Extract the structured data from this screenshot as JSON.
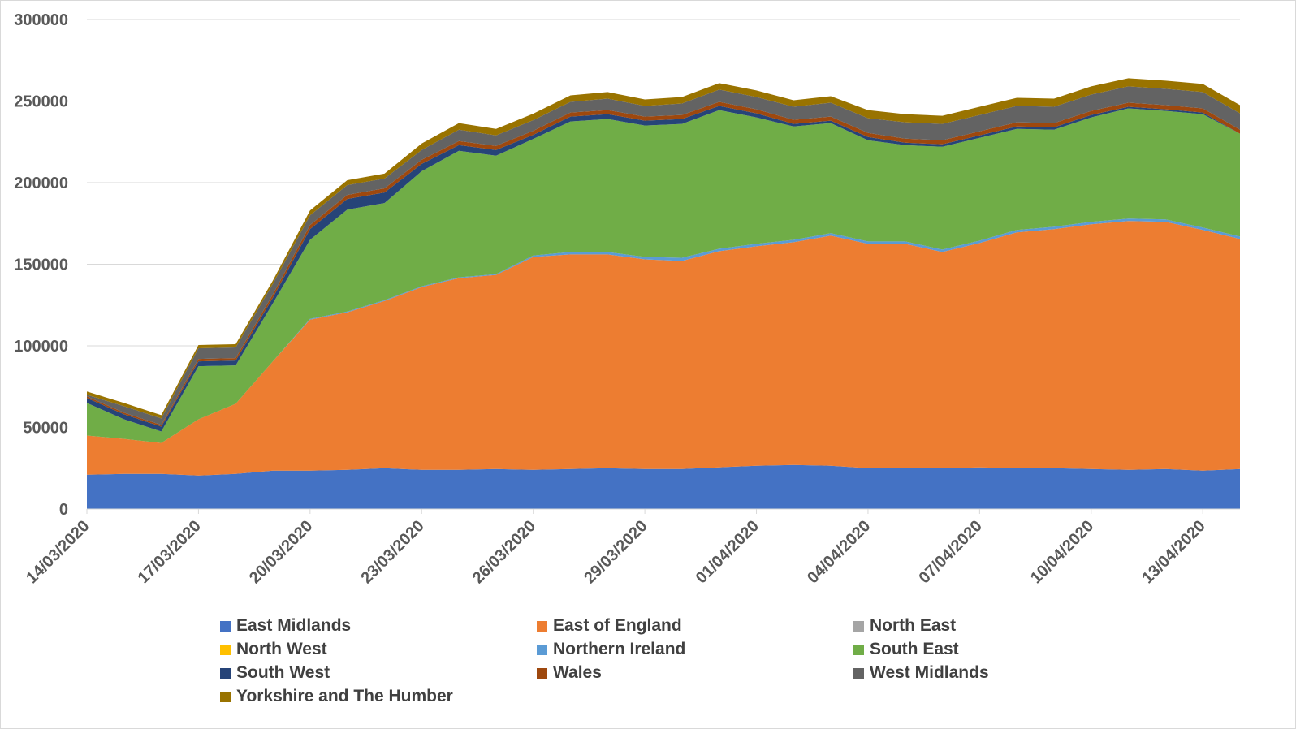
{
  "chart_data": {
    "type": "area",
    "stacked": true,
    "title": "",
    "xlabel": "",
    "ylabel": "",
    "ylim": [
      0,
      300000
    ],
    "y_ticks": [
      0,
      50000,
      100000,
      150000,
      200000,
      250000,
      300000
    ],
    "grid": true,
    "legend_position": "bottom",
    "x": [
      "14/03/2020",
      "15/03/2020",
      "16/03/2020",
      "17/03/2020",
      "18/03/2020",
      "19/03/2020",
      "20/03/2020",
      "21/03/2020",
      "22/03/2020",
      "23/03/2020",
      "24/03/2020",
      "25/03/2020",
      "26/03/2020",
      "27/03/2020",
      "28/03/2020",
      "29/03/2020",
      "30/03/2020",
      "31/03/2020",
      "01/04/2020",
      "02/04/2020",
      "03/04/2020",
      "04/04/2020",
      "05/04/2020",
      "06/04/2020",
      "07/04/2020",
      "08/04/2020",
      "09/04/2020",
      "10/04/2020",
      "11/04/2020",
      "12/04/2020",
      "13/04/2020",
      "14/04/2020"
    ],
    "x_tick_labels": [
      "14/03/2020",
      "17/03/2020",
      "20/03/2020",
      "23/03/2020",
      "26/03/2020",
      "29/03/2020",
      "01/04/2020",
      "04/04/2020",
      "07/04/2020",
      "10/04/2020",
      "13/04/2020"
    ],
    "series": [
      {
        "name": "East Midlands",
        "color": "#4472C4",
        "values": [
          21000,
          21500,
          21500,
          20500,
          21500,
          23500,
          23500,
          24000,
          25000,
          24000,
          24000,
          24500,
          24000,
          24500,
          25000,
          24500,
          24500,
          25500,
          26500,
          27000,
          26500,
          25000,
          25000,
          25000,
          25500,
          25000,
          25000,
          24500,
          24000,
          24500,
          23500,
          24500
        ]
      },
      {
        "name": "East of England",
        "color": "#ED7D31",
        "values": [
          24000,
          21500,
          19000,
          34500,
          43000,
          67000,
          92500,
          96500,
          102500,
          112000,
          117500,
          119000,
          130500,
          131500,
          131000,
          128500,
          127500,
          132500,
          134500,
          136500,
          141000,
          137500,
          137500,
          132500,
          137500,
          144500,
          146500,
          150000,
          152500,
          151500,
          147500,
          141000
        ]
      },
      {
        "name": "North East",
        "color": "#A5A5A5",
        "values": [
          0,
          0,
          0,
          0,
          0,
          0,
          0,
          0,
          0,
          0,
          0,
          0,
          0,
          0,
          0,
          0,
          0,
          0,
          0,
          0,
          0,
          0,
          0,
          0,
          0,
          0,
          0,
          0,
          0,
          0,
          0,
          0
        ]
      },
      {
        "name": "North West",
        "color": "#FFC000",
        "values": [
          0,
          0,
          0,
          0,
          0,
          0,
          0,
          0,
          0,
          0,
          0,
          0,
          0,
          0,
          0,
          0,
          0,
          0,
          0,
          0,
          0,
          0,
          0,
          0,
          0,
          0,
          0,
          0,
          0,
          0,
          0,
          0
        ]
      },
      {
        "name": "Northern Ireland",
        "color": "#5B9BD5",
        "values": [
          0,
          0,
          0,
          0,
          0,
          0,
          500,
          500,
          500,
          500,
          500,
          500,
          800,
          1500,
          1500,
          1500,
          2000,
          1500,
          1500,
          1500,
          1500,
          1500,
          1500,
          1500,
          1500,
          1500,
          1500,
          1500,
          1500,
          1500,
          1500,
          1500
        ]
      },
      {
        "name": "South East",
        "color": "#70AD47",
        "values": [
          20000,
          12000,
          7000,
          32500,
          23500,
          35500,
          48500,
          62500,
          59500,
          70500,
          77500,
          72500,
          71500,
          80000,
          81500,
          80500,
          82000,
          85000,
          77500,
          69500,
          67500,
          62000,
          59000,
          63000,
          63000,
          62000,
          59500,
          64000,
          67500,
          66500,
          69500,
          63000
        ]
      },
      {
        "name": "South West",
        "color": "#264478",
        "values": [
          3000,
          3000,
          3000,
          3000,
          3000,
          3500,
          6500,
          6500,
          6500,
          4500,
          3500,
          3500,
          2500,
          3000,
          3000,
          3000,
          3000,
          2500,
          2500,
          1500,
          1500,
          2000,
          1500,
          1500,
          1500,
          1500,
          1500,
          1500,
          1000,
          1000,
          1000,
          0
        ]
      },
      {
        "name": "Wales",
        "color": "#9E480E",
        "values": [
          1000,
          1000,
          1000,
          1500,
          1500,
          2000,
          2500,
          2500,
          2500,
          2500,
          2500,
          2500,
          2500,
          2500,
          2500,
          2500,
          2500,
          2500,
          2500,
          2500,
          2500,
          2500,
          2500,
          2500,
          2500,
          2500,
          2500,
          2500,
          2500,
          2500,
          2500,
          2500
        ]
      },
      {
        "name": "West Midlands",
        "color": "#636363",
        "values": [
          1000,
          4000,
          4000,
          6500,
          6500,
          6500,
          6000,
          6000,
          6000,
          6000,
          7000,
          6500,
          6500,
          6500,
          7000,
          6500,
          7000,
          7500,
          7500,
          8000,
          8500,
          9000,
          10000,
          10000,
          10000,
          10000,
          10000,
          10000,
          10000,
          10000,
          10000,
          10000
        ]
      },
      {
        "name": "Yorkshire and The Humber",
        "color": "#997300",
        "values": [
          2000,
          2000,
          2000,
          2000,
          2000,
          2000,
          3000,
          3000,
          3000,
          4000,
          4000,
          4000,
          4000,
          4000,
          4000,
          4000,
          4000,
          4000,
          4000,
          4000,
          4000,
          5000,
          5000,
          5000,
          5000,
          5000,
          5000,
          5000,
          5000,
          5000,
          5000,
          5000
        ]
      }
    ]
  }
}
